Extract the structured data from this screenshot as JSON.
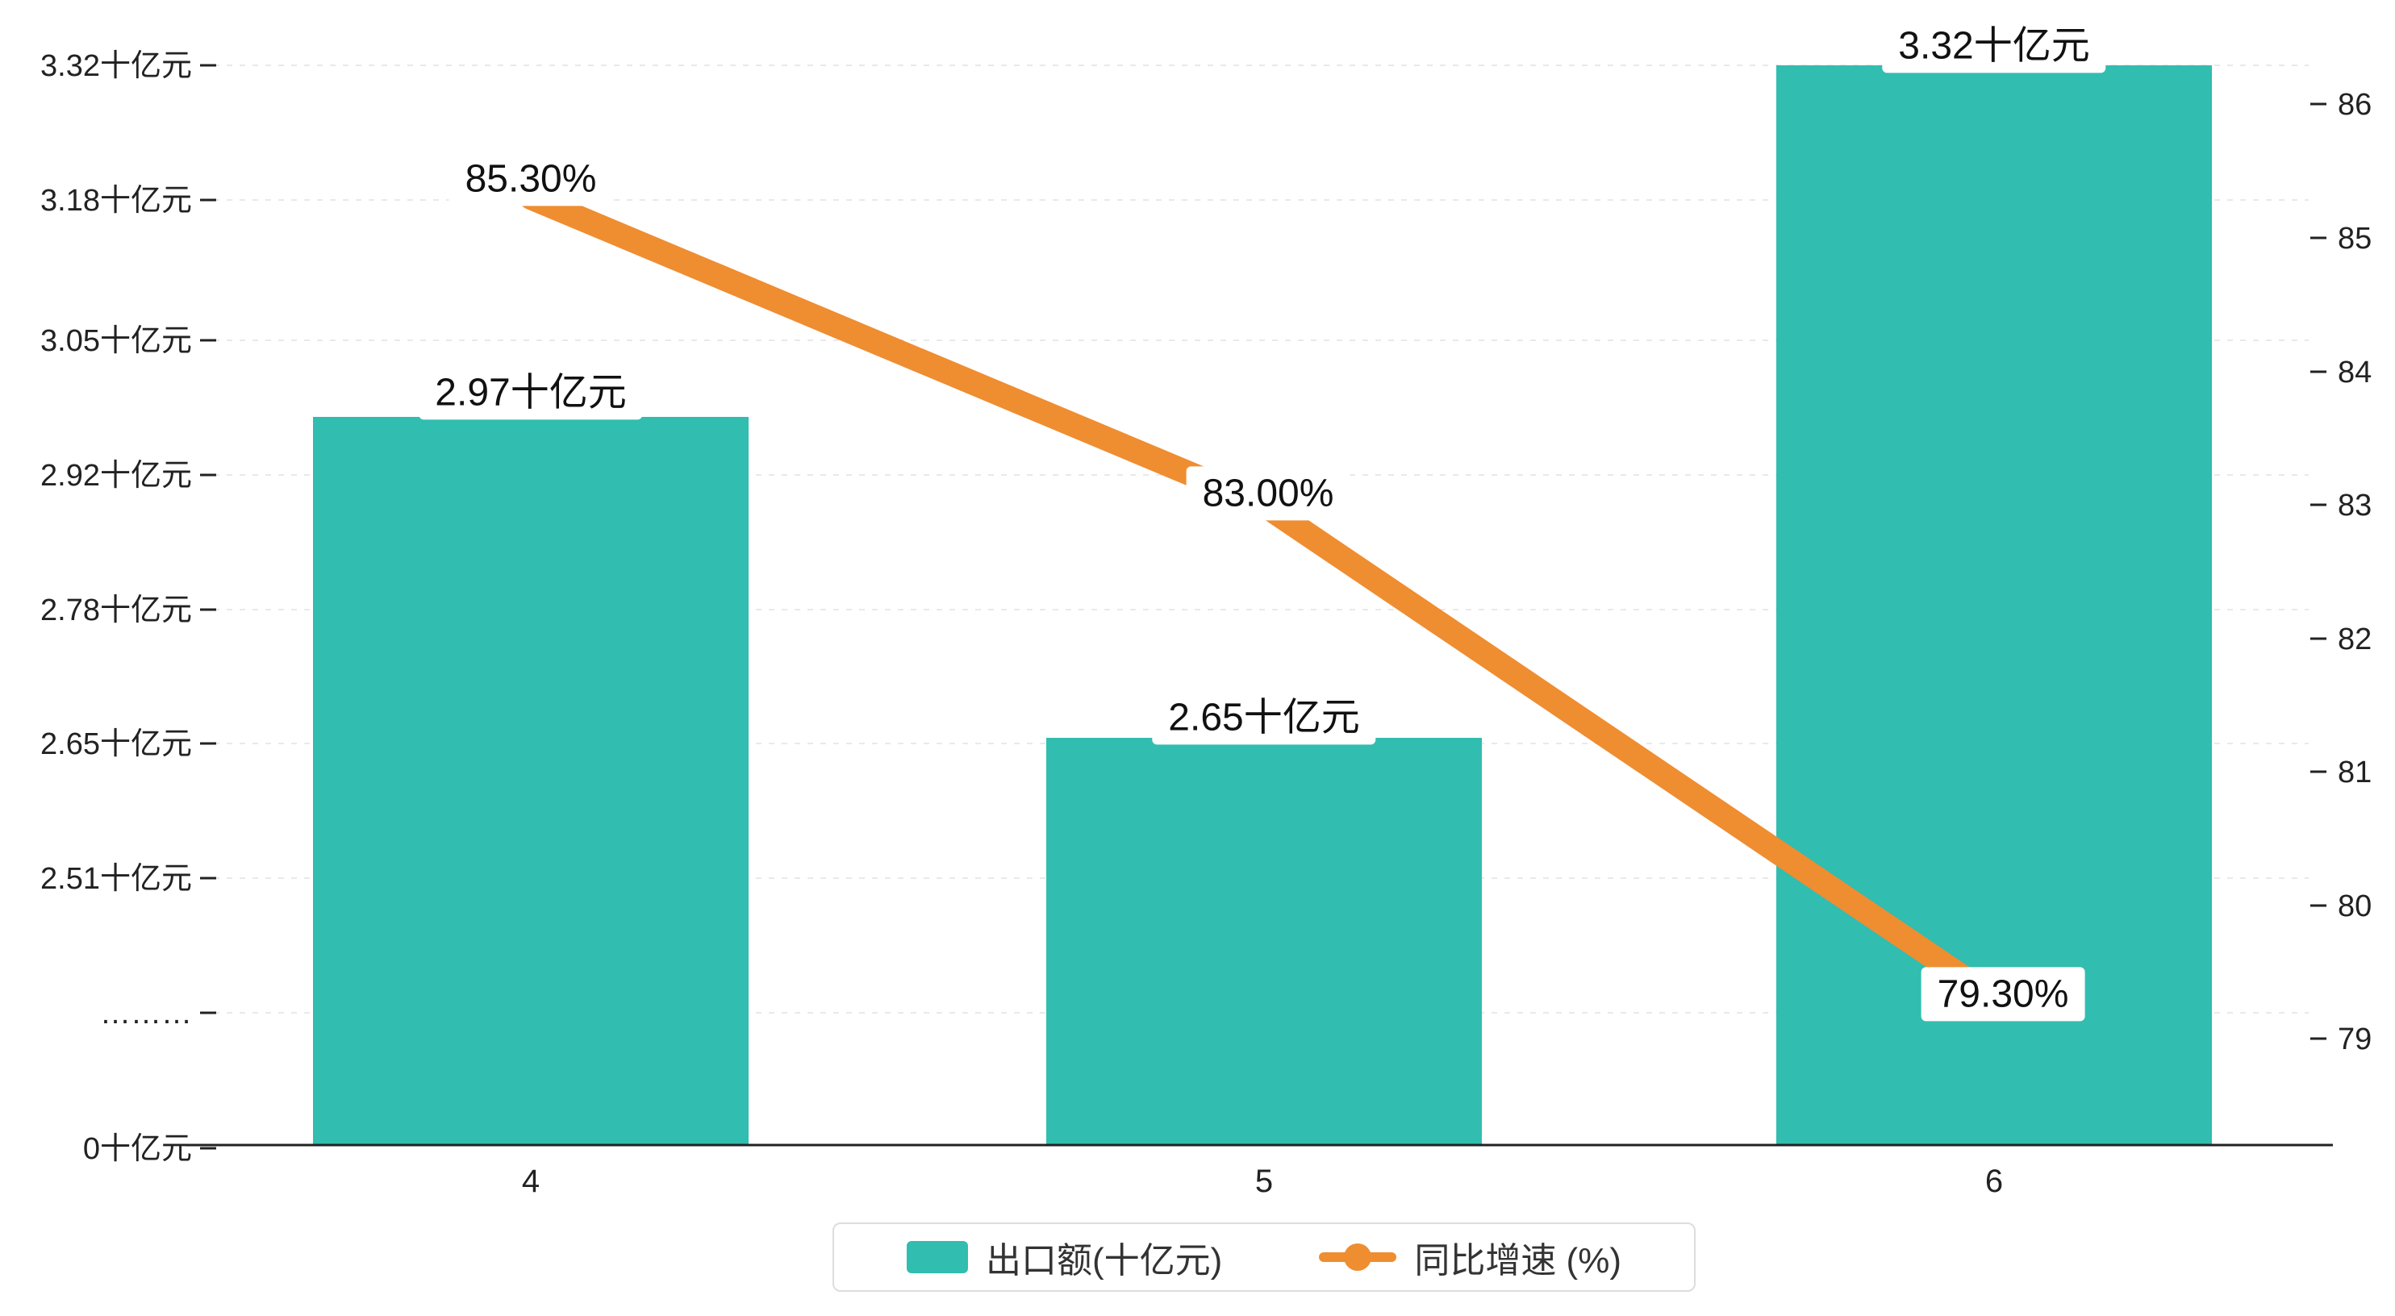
{
  "chart_data": {
    "type": "bar",
    "subtype": "bar+line combo, dual y-axis, broken left axis",
    "categories": [
      "4",
      "5",
      "6"
    ],
    "series": [
      {
        "name": "出口额(十亿元)",
        "type": "bar",
        "values": [
          2.97,
          2.65,
          3.32
        ],
        "unit": "十亿元",
        "color": "#31bdb0",
        "data_labels": [
          "2.97十亿元",
          "2.65十亿元",
          "3.32十亿元"
        ]
      },
      {
        "name": "同比增速 (%)",
        "type": "line",
        "values": [
          85.3,
          83.0,
          79.3
        ],
        "unit": "%",
        "color": "#ef8d31",
        "data_labels": [
          "85.30%",
          "83.00%",
          "79.30%"
        ]
      }
    ],
    "left_axis": {
      "ticks": [
        "3.32十亿元",
        "3.18十亿元",
        "3.05十亿元",
        "2.92十亿元",
        "2.78十亿元",
        "2.65十亿元",
        "2.51十亿元",
        "………",
        "0十亿元"
      ],
      "range_note": "axis break between 2.51 and 0"
    },
    "right_axis": {
      "ticks": [
        "86",
        "85",
        "84",
        "83",
        "82",
        "81",
        "80",
        "79"
      ],
      "range": [
        79,
        86
      ]
    },
    "legend": {
      "position": "bottom-center",
      "items": [
        {
          "label": "出口额(十亿元)",
          "marker": "square",
          "color": "#31bdb0"
        },
        {
          "label": "同比增速 (%)",
          "marker": "line-dot",
          "color": "#ef8d31"
        }
      ]
    },
    "grid": true,
    "background": "#ffffff"
  },
  "colors": {
    "bar": "#31bdb0",
    "line": "#ef8d31",
    "axis": "#222222",
    "gridline": "#e9e9e9",
    "label_text": "#111111"
  }
}
